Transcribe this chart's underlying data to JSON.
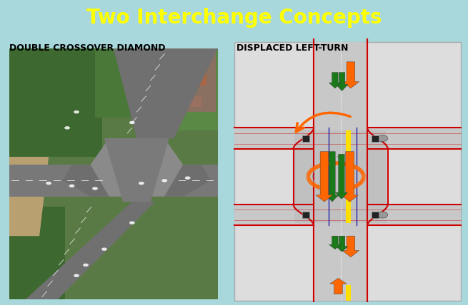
{
  "title": "Two Interchange Concepts",
  "title_color": "#FFFF00",
  "title_bg_color": "#5a5f00",
  "title_fontsize": 20,
  "bg_color": "#A8D8DC",
  "label_left": "DOUBLE CROSSOVER DIAMOND",
  "label_right": "DISPLACED LEFT-TURN",
  "label_fontsize": 9,
  "road_gray": "#C8C8C8",
  "road_dark_gray": "#888888",
  "road_red": "#CC0000",
  "road_yellow": "#FFE000",
  "road_white": "#FFFFFF",
  "arrow_orange": "#FF6600",
  "arrow_green": "#1A7A1A",
  "road_blue": "#3333AA",
  "photo_left_top": "#4a6b38",
  "intersection_gray": "#B0B0B0",
  "panel_right_bg": "#DDDDDD"
}
